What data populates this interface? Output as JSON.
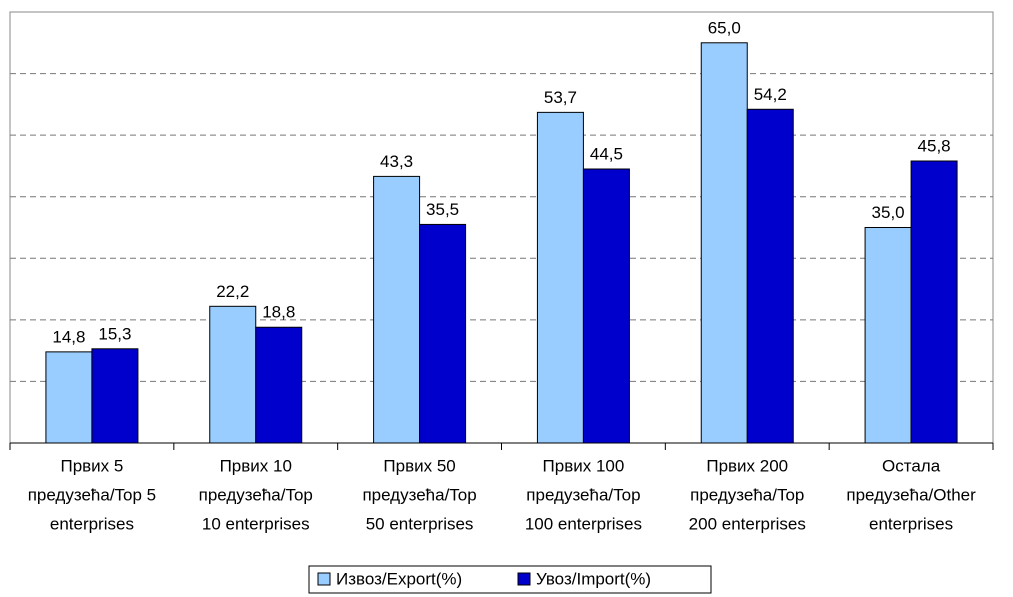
{
  "chart_data": {
    "type": "bar",
    "categories": [
      [
        "Првих 5",
        "предузећа/Top 5",
        "enterprises"
      ],
      [
        "Првих 10",
        "предузећа/Top",
        "10 enterprises"
      ],
      [
        "Првих 50",
        "предузећа/Top",
        "50 enterprises"
      ],
      [
        "Првих 100",
        "предузећа/Top",
        "100 enterprises"
      ],
      [
        "Првих 200",
        "предузећа/Top",
        "200 enterprises"
      ],
      [
        "Остала",
        "предузећа/Other",
        "enterprises"
      ]
    ],
    "series": [
      {
        "name": "Извоз/Export(%)",
        "color": "#99ccff",
        "values": [
          14.8,
          22.2,
          43.3,
          53.7,
          65.0,
          35.0
        ],
        "value_labels": [
          "14,8",
          "22,2",
          "43,3",
          "53,7",
          "65,0",
          "35,0"
        ]
      },
      {
        "name": "Увоз/Import(%)",
        "color": "#0000cc",
        "values": [
          15.3,
          18.8,
          35.5,
          44.5,
          54.2,
          45.8
        ],
        "value_labels": [
          "15,3",
          "18,8",
          "35,5",
          "44,5",
          "54,2",
          "45,8"
        ]
      }
    ],
    "ylim": [
      0,
      70
    ],
    "yticks": [
      0,
      10,
      20,
      30,
      40,
      50,
      60,
      70
    ],
    "grid": true,
    "legend": "bottom"
  }
}
